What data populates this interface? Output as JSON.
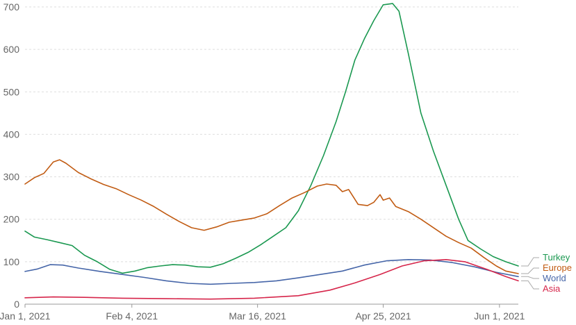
{
  "chart_data": {
    "type": "line",
    "title": "",
    "xlabel": "",
    "ylabel": "",
    "ylim": [
      0,
      700
    ],
    "yticks": [
      0,
      100,
      200,
      300,
      400,
      500,
      600,
      700
    ],
    "xlim": [
      "2021-01-01",
      "2021-06-07"
    ],
    "xticks": [
      {
        "date": "2021-01-01",
        "label": "Jan 1, 2021"
      },
      {
        "date": "2021-02-04",
        "label": "Feb 4, 2021"
      },
      {
        "date": "2021-03-16",
        "label": "Mar 16, 2021"
      },
      {
        "date": "2021-04-25",
        "label": "Apr 25, 2021"
      },
      {
        "date": "2021-06-01",
        "label": "Jun 1, 2021"
      }
    ],
    "grid": true,
    "legend": "right, at line ends",
    "series": [
      {
        "name": "Turkey",
        "color": "#1a9850",
        "points": [
          [
            "2021-01-01",
            172
          ],
          [
            "2021-01-04",
            158
          ],
          [
            "2021-01-08",
            152
          ],
          [
            "2021-01-12",
            145
          ],
          [
            "2021-01-16",
            138
          ],
          [
            "2021-01-20",
            115
          ],
          [
            "2021-01-24",
            100
          ],
          [
            "2021-01-28",
            82
          ],
          [
            "2021-02-01",
            73
          ],
          [
            "2021-02-05",
            78
          ],
          [
            "2021-02-09",
            86
          ],
          [
            "2021-02-13",
            90
          ],
          [
            "2021-02-17",
            93
          ],
          [
            "2021-02-21",
            92
          ],
          [
            "2021-02-25",
            88
          ],
          [
            "2021-03-01",
            87
          ],
          [
            "2021-03-05",
            95
          ],
          [
            "2021-03-09",
            108
          ],
          [
            "2021-03-13",
            122
          ],
          [
            "2021-03-17",
            140
          ],
          [
            "2021-03-21",
            160
          ],
          [
            "2021-03-25",
            180
          ],
          [
            "2021-03-29",
            220
          ],
          [
            "2021-04-02",
            280
          ],
          [
            "2021-04-06",
            350
          ],
          [
            "2021-04-10",
            430
          ],
          [
            "2021-04-13",
            500
          ],
          [
            "2021-04-16",
            575
          ],
          [
            "2021-04-19",
            625
          ],
          [
            "2021-04-22",
            668
          ],
          [
            "2021-04-25",
            705
          ],
          [
            "2021-04-28",
            708
          ],
          [
            "2021-04-30",
            690
          ],
          [
            "2021-05-03",
            590
          ],
          [
            "2021-05-07",
            450
          ],
          [
            "2021-05-11",
            360
          ],
          [
            "2021-05-15",
            280
          ],
          [
            "2021-05-19",
            200
          ],
          [
            "2021-05-22",
            150
          ],
          [
            "2021-05-26",
            130
          ],
          [
            "2021-05-30",
            112
          ],
          [
            "2021-06-03",
            100
          ],
          [
            "2021-06-07",
            90
          ]
        ]
      },
      {
        "name": "Europe",
        "color": "#c15b12",
        "points": [
          [
            "2021-01-01",
            283
          ],
          [
            "2021-01-04",
            298
          ],
          [
            "2021-01-07",
            308
          ],
          [
            "2021-01-10",
            335
          ],
          [
            "2021-01-12",
            340
          ],
          [
            "2021-01-14",
            332
          ],
          [
            "2021-01-18",
            310
          ],
          [
            "2021-01-22",
            295
          ],
          [
            "2021-01-26",
            282
          ],
          [
            "2021-01-30",
            272
          ],
          [
            "2021-02-03",
            258
          ],
          [
            "2021-02-07",
            245
          ],
          [
            "2021-02-11",
            230
          ],
          [
            "2021-02-15",
            212
          ],
          [
            "2021-02-19",
            195
          ],
          [
            "2021-02-23",
            180
          ],
          [
            "2021-02-27",
            174
          ],
          [
            "2021-03-03",
            182
          ],
          [
            "2021-03-07",
            193
          ],
          [
            "2021-03-11",
            198
          ],
          [
            "2021-03-15",
            203
          ],
          [
            "2021-03-19",
            213
          ],
          [
            "2021-03-23",
            232
          ],
          [
            "2021-03-27",
            250
          ],
          [
            "2021-03-31",
            263
          ],
          [
            "2021-04-04",
            278
          ],
          [
            "2021-04-07",
            283
          ],
          [
            "2021-04-10",
            280
          ],
          [
            "2021-04-12",
            265
          ],
          [
            "2021-04-14",
            270
          ],
          [
            "2021-04-17",
            235
          ],
          [
            "2021-04-20",
            232
          ],
          [
            "2021-04-22",
            240
          ],
          [
            "2021-04-24",
            258
          ],
          [
            "2021-04-25",
            245
          ],
          [
            "2021-04-27",
            250
          ],
          [
            "2021-04-29",
            230
          ],
          [
            "2021-05-03",
            218
          ],
          [
            "2021-05-07",
            200
          ],
          [
            "2021-05-11",
            180
          ],
          [
            "2021-05-15",
            160
          ],
          [
            "2021-05-19",
            145
          ],
          [
            "2021-05-23",
            132
          ],
          [
            "2021-05-27",
            110
          ],
          [
            "2021-05-31",
            90
          ],
          [
            "2021-06-03",
            78
          ],
          [
            "2021-06-07",
            72
          ]
        ]
      },
      {
        "name": "World",
        "color": "#4565a8",
        "points": [
          [
            "2021-01-01",
            77
          ],
          [
            "2021-01-05",
            83
          ],
          [
            "2021-01-09",
            93
          ],
          [
            "2021-01-13",
            92
          ],
          [
            "2021-01-18",
            85
          ],
          [
            "2021-01-25",
            77
          ],
          [
            "2021-02-01",
            70
          ],
          [
            "2021-02-08",
            63
          ],
          [
            "2021-02-15",
            55
          ],
          [
            "2021-02-22",
            49
          ],
          [
            "2021-03-01",
            47
          ],
          [
            "2021-03-08",
            49
          ],
          [
            "2021-03-15",
            51
          ],
          [
            "2021-03-22",
            55
          ],
          [
            "2021-03-29",
            62
          ],
          [
            "2021-04-05",
            70
          ],
          [
            "2021-04-12",
            78
          ],
          [
            "2021-04-19",
            92
          ],
          [
            "2021-04-26",
            102
          ],
          [
            "2021-05-03",
            105
          ],
          [
            "2021-05-10",
            104
          ],
          [
            "2021-05-17",
            98
          ],
          [
            "2021-05-24",
            88
          ],
          [
            "2021-05-31",
            75
          ],
          [
            "2021-06-07",
            65
          ]
        ]
      },
      {
        "name": "Asia",
        "color": "#d6254a",
        "points": [
          [
            "2021-01-01",
            15
          ],
          [
            "2021-01-10",
            17
          ],
          [
            "2021-01-20",
            16
          ],
          [
            "2021-02-01",
            14
          ],
          [
            "2021-02-15",
            13
          ],
          [
            "2021-03-01",
            12
          ],
          [
            "2021-03-15",
            14
          ],
          [
            "2021-03-29",
            20
          ],
          [
            "2021-04-08",
            33
          ],
          [
            "2021-04-16",
            50
          ],
          [
            "2021-04-24",
            70
          ],
          [
            "2021-05-01",
            90
          ],
          [
            "2021-05-08",
            102
          ],
          [
            "2021-05-15",
            105
          ],
          [
            "2021-05-21",
            100
          ],
          [
            "2021-05-28",
            82
          ],
          [
            "2021-06-03",
            65
          ],
          [
            "2021-06-07",
            55
          ]
        ]
      }
    ]
  }
}
